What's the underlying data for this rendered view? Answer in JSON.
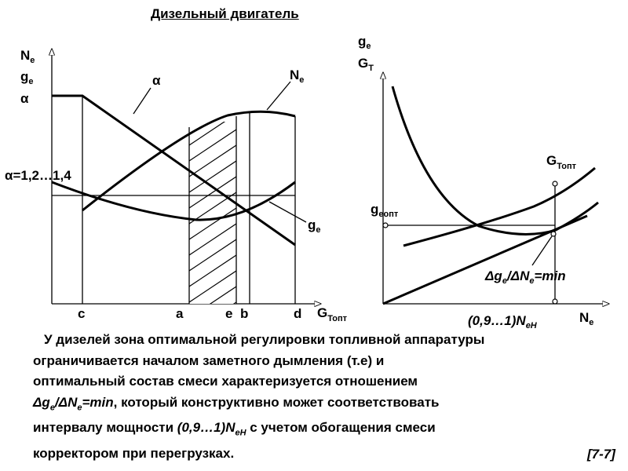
{
  "title": "Дизельный двигатель",
  "left_chart": {
    "y_axis_labels": [
      {
        "main": "N",
        "sub": "e"
      },
      {
        "main": "g",
        "sub": "e"
      },
      {
        "main": "α",
        "sub": ""
      }
    ],
    "alpha_range_label": "α=1,2…1,4",
    "x_axis": {
      "main": "G",
      "sub": "Топт"
    },
    "x_ticks": [
      "c",
      "a",
      "e",
      "b",
      "d"
    ],
    "curve_labels": {
      "alpha": "α",
      "power": {
        "main": "N",
        "sub": "e"
      },
      "specific_consumption": {
        "main": "g",
        "sub": "e"
      }
    }
  },
  "right_chart": {
    "y_axis_labels": [
      {
        "main": "g",
        "sub": "e"
      },
      {
        "main": "G",
        "sub": "T"
      }
    ],
    "x_axis": {
      "main": "N",
      "sub": "e"
    },
    "x_tick": {
      "prefix": "(0,9…1)N",
      "sub": "eH"
    },
    "g_opt_label": {
      "main": "g",
      "sub": "eопт"
    },
    "gt_opt_label": {
      "main": "G",
      "sub": "Топт"
    },
    "min_condition": {
      "d1": "Δg",
      "s1": "e",
      "mid": "/ΔN",
      "s2": "e",
      "tail": "=min"
    }
  },
  "caption": {
    "line1": "У дизелей зона оптимальной регулировки топливной аппаратуры",
    "line2": "ограничивается началом заметного дымления (т.е)  и",
    "line3": "оптимальный состав смеси характеризуется отношением",
    "line4_formula": {
      "d1": "Δg",
      "s1": "e",
      "mid": "/ΔN",
      "s2": "e",
      "tail": "=min"
    },
    "line4_text": ", который конструктивно может соответствовать",
    "line5_start": "интервалу мощности ",
    "line5_formula": {
      "prefix": "(0,9…1)N",
      "sub": "eH"
    },
    "line5_end": " с учетом обогащения смеси",
    "line6": "корректором при перегрузках."
  },
  "slide_ref": "[7-7]"
}
